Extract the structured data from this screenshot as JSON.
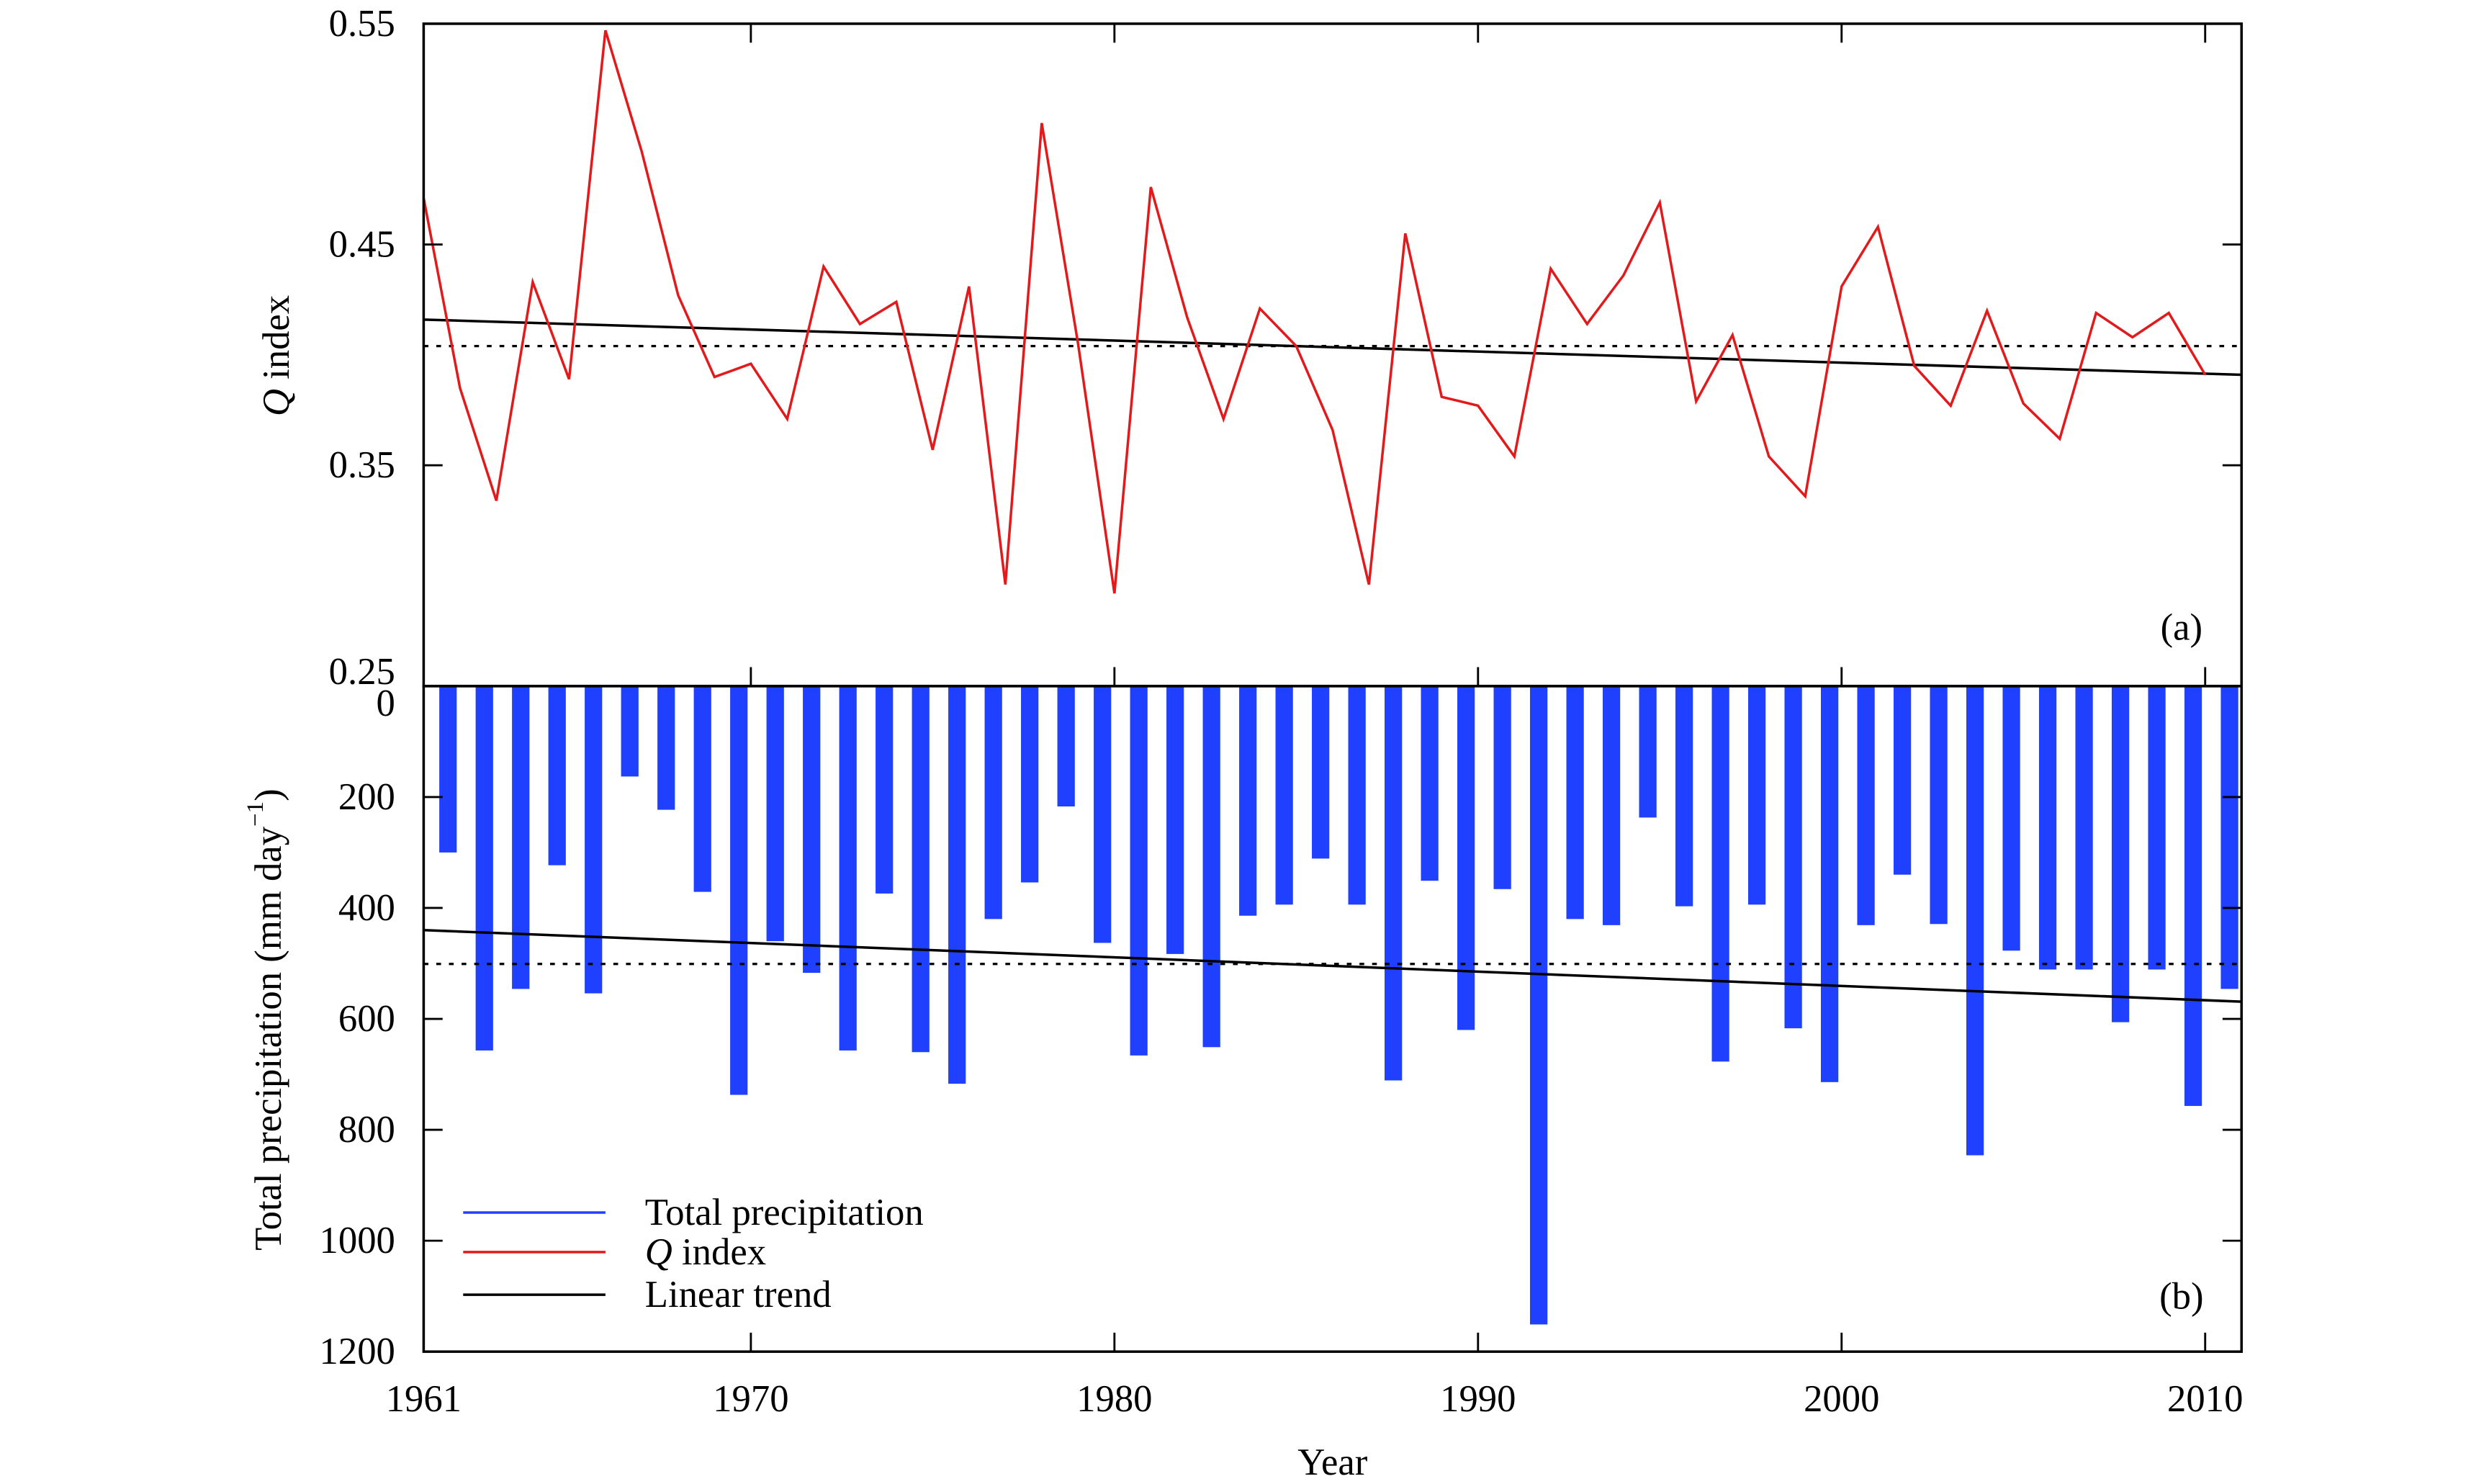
{
  "chart_data": [
    {
      "type": "line",
      "panel_label": "(a)",
      "ylabel": {
        "symbol": "Q",
        "text": " index"
      },
      "xlim": [
        1961,
        2011
      ],
      "ylim": [
        0.25,
        0.55
      ],
      "yticks": [
        0.25,
        0.35,
        0.45,
        0.55
      ],
      "ytick_labels": [
        "0.25",
        "0.35",
        "0.45",
        "0.55"
      ],
      "x": [
        1961,
        1962,
        1963,
        1964,
        1965,
        1966,
        1967,
        1968,
        1969,
        1970,
        1971,
        1972,
        1973,
        1974,
        1975,
        1976,
        1977,
        1978,
        1979,
        1980,
        1981,
        1982,
        1983,
        1984,
        1985,
        1986,
        1987,
        1988,
        1989,
        1990,
        1991,
        1992,
        1993,
        1994,
        1995,
        1996,
        1997,
        1998,
        1999,
        2000,
        2001,
        2002,
        2003,
        2004,
        2005,
        2006,
        2007,
        2008,
        2009,
        2010
      ],
      "series": [
        {
          "name": {
            "symbol": "Q",
            "text": " index"
          },
          "color": "#e31a1c",
          "values": [
            0.471,
            0.385,
            0.334,
            0.433,
            0.389,
            0.547,
            0.492,
            0.427,
            0.39,
            0.396,
            0.371,
            0.44,
            0.414,
            0.424,
            0.357,
            0.431,
            0.296,
            0.505,
            0.405,
            0.292,
            0.476,
            0.417,
            0.371,
            0.421,
            0.404,
            0.366,
            0.296,
            0.455,
            0.381,
            0.377,
            0.354,
            0.439,
            0.414,
            0.436,
            0.469,
            0.379,
            0.409,
            0.354,
            0.336,
            0.431,
            0.458,
            0.395,
            0.377,
            0.42,
            0.378,
            0.362,
            0.419,
            0.408,
            0.419,
            0.391
          ]
        }
      ],
      "linear_trend": {
        "x": [
          1961,
          2011
        ],
        "values": [
          0.416,
          0.391
        ],
        "color": "#000000"
      },
      "mean": 0.404
    },
    {
      "type": "bar",
      "panel_label": "(b)",
      "ylabel": {
        "text": "Total precipitation (mm day",
        "superscript": "−1",
        "close": ")"
      },
      "xlim": [
        1961,
        2011
      ],
      "ylim": [
        0,
        1200
      ],
      "y_inverted": true,
      "yticks": [
        0,
        200,
        400,
        600,
        800,
        1000,
        1200
      ],
      "ytick_labels": [
        "0",
        "200",
        "400",
        "600",
        "800",
        "1000",
        "1200"
      ],
      "x": [
        1961,
        1962,
        1963,
        1964,
        1965,
        1966,
        1967,
        1968,
        1969,
        1970,
        1971,
        1972,
        1973,
        1974,
        1975,
        1976,
        1977,
        1978,
        1979,
        1980,
        1981,
        1982,
        1983,
        1984,
        1985,
        1986,
        1987,
        1988,
        1989,
        1990,
        1991,
        1992,
        1993,
        1994,
        1995,
        1996,
        1997,
        1998,
        1999,
        2000,
        2001,
        2002,
        2003,
        2004,
        2005,
        2006,
        2007,
        2008,
        2009,
        2010
      ],
      "series": [
        {
          "name": "Total precipitation",
          "color": "#1f40ff",
          "values": [
            300,
            657,
            546,
            323,
            554,
            163,
            223,
            371,
            737,
            460,
            517,
            657,
            374,
            660,
            717,
            420,
            354,
            217,
            463,
            666,
            483,
            651,
            414,
            394,
            311,
            394,
            711,
            351,
            620,
            366,
            1151,
            420,
            431,
            237,
            397,
            677,
            394,
            617,
            714,
            431,
            340,
            429,
            846,
            477,
            511,
            511,
            606,
            511,
            757,
            546
          ]
        }
      ],
      "linear_trend": {
        "x": [
          1961,
          2011
        ],
        "values": [
          440,
          569
        ],
        "color": "#000000"
      },
      "mean": 501
    }
  ],
  "x_axis": {
    "label": "Year",
    "ticks": [
      1961,
      1970,
      1980,
      1990,
      2000,
      2010
    ],
    "tick_labels": [
      "1961",
      "1970",
      "1980",
      "1990",
      "2000",
      "2010"
    ]
  },
  "legend": {
    "trend_label": "Linear trend",
    "trend_color": "#000000"
  }
}
